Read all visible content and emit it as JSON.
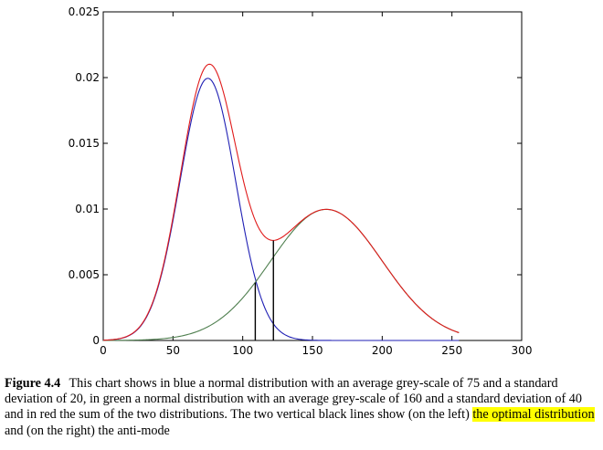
{
  "chart_data": {
    "type": "line",
    "xlim": [
      0,
      300
    ],
    "ylim": [
      0,
      0.025
    ],
    "x_ticks": [
      "0",
      "50",
      "100",
      "150",
      "200",
      "250",
      "300"
    ],
    "y_ticks": [
      "0",
      "0.005",
      "0.01",
      "0.015",
      "0.02",
      "0.025"
    ],
    "grid": false,
    "legend": "none",
    "series": [
      {
        "color": "#1f1fb4",
        "mean": 75,
        "sd": 20,
        "weight": 1,
        "x_range": [
          0,
          255
        ]
      },
      {
        "color": "#4f7f4f",
        "mean": 160,
        "sd": 40,
        "weight": 1,
        "x_range": [
          0,
          255
        ]
      },
      {
        "color": "#e01b1b",
        "components": [
          0,
          1
        ],
        "x_range": [
          0,
          255
        ]
      }
    ],
    "vertical_lines": [
      {
        "x": 109,
        "y": 0.0044,
        "color": "#000000"
      },
      {
        "x": 122,
        "y": 0.0076,
        "color": "#000000"
      }
    ]
  },
  "caption": {
    "label": "Figure 4.4",
    "text_before": "This chart shows in blue a normal distribution with an average grey-scale of 75 and a standard deviation of 20, in green a normal distribution with an average grey-scale of 160 and a standard deviation of 40 and in red the sum of the two distributions. The two vertical black lines show (on the left)",
    "highlight": "the optimal distribution",
    "text_after": "and (on the right) the anti-mode"
  }
}
